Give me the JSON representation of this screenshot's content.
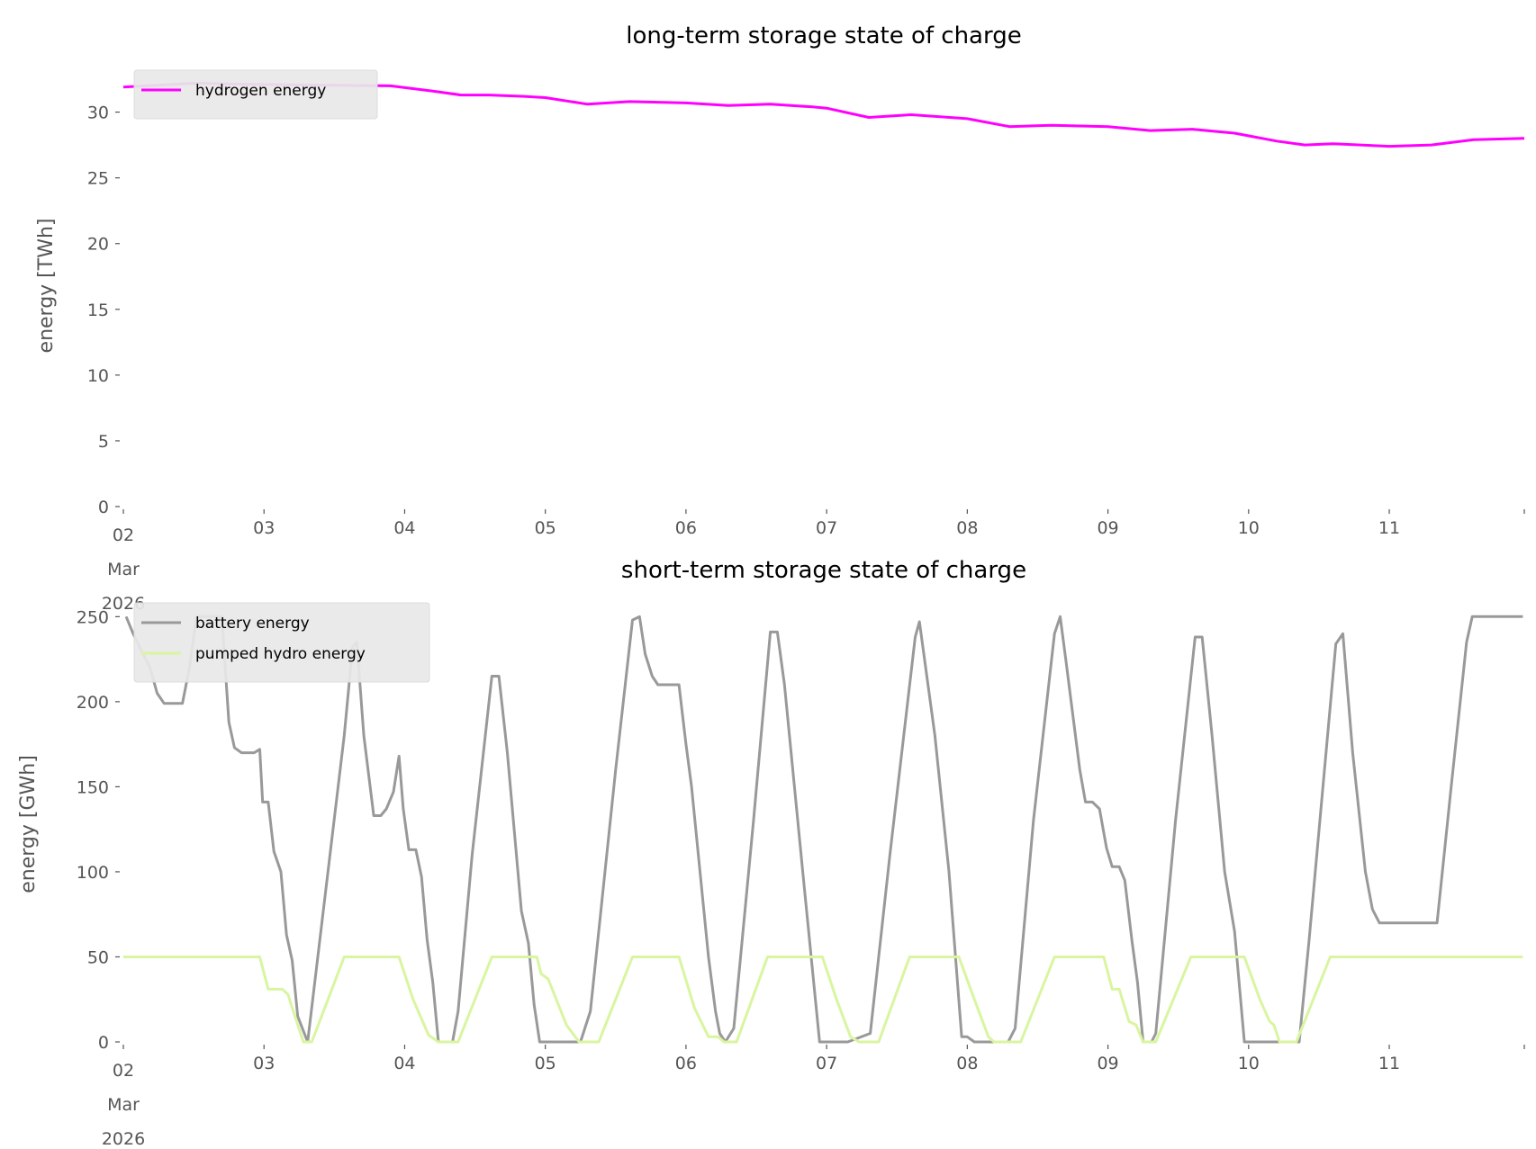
{
  "chart_data": [
    {
      "type": "line",
      "title": "long-term storage state of charge",
      "ylabel": "energy [TWh]",
      "xlabel": "",
      "x_units": "days since 02 Mar 2026",
      "xlim": [
        0,
        9.96
      ],
      "ylim": [
        0,
        33.6
      ],
      "grid": false,
      "legend": "top-left",
      "yticks": [
        0,
        5,
        10,
        15,
        20,
        25,
        30
      ],
      "xticks": [
        {
          "value": 0,
          "label": [
            "02",
            "Mar",
            "2026"
          ]
        },
        {
          "value": 1,
          "label": [
            "03"
          ]
        },
        {
          "value": 2,
          "label": [
            "04"
          ]
        },
        {
          "value": 3,
          "label": [
            "05"
          ]
        },
        {
          "value": 4,
          "label": [
            "06"
          ]
        },
        {
          "value": 5,
          "label": [
            "07"
          ]
        },
        {
          "value": 6,
          "label": [
            "08"
          ]
        },
        {
          "value": 7,
          "label": [
            "09"
          ]
        },
        {
          "value": 8,
          "label": [
            "10"
          ]
        },
        {
          "value": 9,
          "label": [
            "11"
          ]
        }
      ],
      "series": [
        {
          "name": "hydrogen energy",
          "color": "#ff00ff",
          "x": [
            0,
            0.5,
            1,
            1.9,
            2.2,
            2.4,
            2.6,
            2.85,
            3.0,
            3.3,
            3.6,
            4.0,
            4.3,
            4.6,
            4.9,
            5.0,
            5.3,
            5.6,
            6.0,
            6.3,
            6.6,
            7.0,
            7.3,
            7.6,
            7.9,
            8.2,
            8.4,
            8.6,
            9.0,
            9.3,
            9.6,
            9.96
          ],
          "y": [
            31.9,
            32.2,
            32.1,
            32.0,
            31.6,
            31.3,
            31.3,
            31.2,
            31.1,
            30.6,
            30.8,
            30.7,
            30.5,
            30.6,
            30.4,
            30.3,
            29.6,
            29.8,
            29.5,
            28.9,
            29.0,
            28.9,
            28.6,
            28.7,
            28.4,
            27.8,
            27.5,
            27.6,
            27.4,
            27.5,
            27.9,
            28.0
          ]
        }
      ]
    },
    {
      "type": "line",
      "title": "short-term storage state of charge",
      "ylabel": "energy [GWh]",
      "xlabel": "",
      "x_units": "days since 02 Mar 2026",
      "xlim": [
        0,
        9.96
      ],
      "ylim": [
        0,
        256
      ],
      "grid": false,
      "legend": "top-left",
      "yticks": [
        0,
        50,
        100,
        150,
        200,
        250
      ],
      "xticks": [
        {
          "value": 0,
          "label": [
            "02",
            "Mar",
            "2026"
          ]
        },
        {
          "value": 1,
          "label": [
            "03"
          ]
        },
        {
          "value": 2,
          "label": [
            "04"
          ]
        },
        {
          "value": 3,
          "label": [
            "05"
          ]
        },
        {
          "value": 4,
          "label": [
            "06"
          ]
        },
        {
          "value": 5,
          "label": [
            "07"
          ]
        },
        {
          "value": 6,
          "label": [
            "08"
          ]
        },
        {
          "value": 7,
          "label": [
            "09"
          ]
        },
        {
          "value": 8,
          "label": [
            "10"
          ]
        },
        {
          "value": 9,
          "label": [
            "11"
          ]
        }
      ],
      "series": [
        {
          "name": "battery energy",
          "color": "#999999",
          "x": [
            0.02,
            0.07,
            0.14,
            0.19,
            0.24,
            0.29,
            0.42,
            0.47,
            0.52,
            0.7,
            0.75,
            0.79,
            0.84,
            0.93,
            0.97,
            0.99,
            1.03,
            1.07,
            1.12,
            1.16,
            1.2,
            1.24,
            1.31,
            1.57,
            1.63,
            1.66,
            1.71,
            1.78,
            1.83,
            1.87,
            1.92,
            1.96,
            1.99,
            2.03,
            2.08,
            2.12,
            2.16,
            2.2,
            2.24,
            2.34,
            2.38,
            2.48,
            2.62,
            2.67,
            2.73,
            2.83,
            2.88,
            2.92,
            2.96,
            3.25,
            3.32,
            3.5,
            3.62,
            3.67,
            3.71,
            3.76,
            3.8,
            3.95,
            4.0,
            4.04,
            4.16,
            4.21,
            4.24,
            4.28,
            4.34,
            4.48,
            4.6,
            4.65,
            4.7,
            4.83,
            4.95,
            5.15,
            5.31,
            5.45,
            5.63,
            5.66,
            5.77,
            5.87,
            5.96,
            6.0,
            6.05,
            6.29,
            6.34,
            6.47,
            6.62,
            6.66,
            6.7,
            6.8,
            6.84,
            6.89,
            6.94,
            6.99,
            7.03,
            7.08,
            7.12,
            7.17,
            7.21,
            7.25,
            7.31,
            7.34,
            7.48,
            7.62,
            7.67,
            7.74,
            7.83,
            7.9,
            7.97,
            8.36,
            8.43,
            8.62,
            8.67,
            8.74,
            8.83,
            8.88,
            8.93,
            9.34,
            9.44,
            9.55,
            9.59,
            9.95
          ],
          "y": [
            250,
            240,
            228,
            220,
            205,
            199,
            199,
            220,
            250,
            250,
            188,
            173,
            170,
            170,
            172,
            141,
            141,
            112,
            100,
            63,
            48,
            15,
            0,
            180,
            232,
            235,
            180,
            133,
            133,
            137,
            147,
            168,
            137,
            113,
            113,
            97,
            60,
            35,
            0,
            0,
            18,
            110,
            215,
            215,
            170,
            77,
            58,
            22,
            0,
            0,
            18,
            160,
            248,
            250,
            228,
            215,
            210,
            210,
            175,
            150,
            50,
            18,
            5,
            0,
            8,
            130,
            241,
            241,
            210,
            100,
            0,
            0,
            5,
            110,
            238,
            247,
            180,
            100,
            3,
            3,
            0,
            0,
            8,
            130,
            240,
            250,
            225,
            160,
            141,
            141,
            137,
            114,
            103,
            103,
            95,
            60,
            35,
            0,
            0,
            5,
            130,
            238,
            238,
            180,
            100,
            65,
            0,
            0,
            60,
            234,
            240,
            170,
            100,
            78,
            70,
            70,
            150,
            235,
            250,
            250
          ]
        },
        {
          "name": "pumped hydro energy",
          "color": "#d9f5a0",
          "x": [
            0,
            0.97,
            1.03,
            1.13,
            1.17,
            1.22,
            1.28,
            1.34,
            1.57,
            1.96,
            2.06,
            2.17,
            2.24,
            2.38,
            2.62,
            2.94,
            2.97,
            3.02,
            3.15,
            3.24,
            3.38,
            3.62,
            3.95,
            4.06,
            4.16,
            4.23,
            4.27,
            4.36,
            4.58,
            4.97,
            5.07,
            5.17,
            5.23,
            5.37,
            5.59,
            5.94,
            6.05,
            6.15,
            6.19,
            6.38,
            6.62,
            6.97,
            7.03,
            7.08,
            7.15,
            7.2,
            7.25,
            7.34,
            7.59,
            7.97,
            8.08,
            8.15,
            8.18,
            8.22,
            8.34,
            8.58,
            9.95
          ],
          "y": [
            50,
            50,
            31,
            31,
            28,
            15,
            0,
            0,
            50,
            50,
            25,
            4,
            0,
            0,
            50,
            50,
            40,
            37,
            10,
            0,
            0,
            50,
            50,
            20,
            3,
            3,
            0,
            0,
            50,
            50,
            25,
            3,
            0,
            0,
            50,
            50,
            25,
            3,
            0,
            0,
            50,
            50,
            31,
            31,
            12,
            10,
            0,
            0,
            50,
            50,
            25,
            12,
            10,
            0,
            0,
            50,
            50
          ]
        }
      ]
    }
  ]
}
